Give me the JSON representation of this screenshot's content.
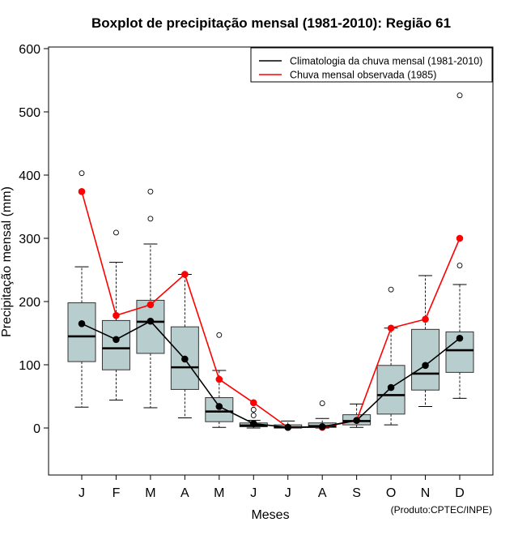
{
  "chart_data": {
    "type": "boxplot",
    "title": "Boxplot de precipitação mensal (1981-2010): Região 61",
    "xlabel": "Meses",
    "ylabel": "Precipitação mensal (mm)",
    "ylim": [
      -75,
      600
    ],
    "yticks": [
      0,
      100,
      200,
      300,
      400,
      500,
      600
    ],
    "categories": [
      "J",
      "F",
      "M",
      "A",
      "M",
      "J",
      "J",
      "A",
      "S",
      "O",
      "N",
      "D"
    ],
    "boxes": [
      {
        "month": "J",
        "whisker_low": 33,
        "q1": 105,
        "median": 145,
        "q3": 198,
        "whisker_high": 255,
        "outliers": [
          403
        ]
      },
      {
        "month": "F",
        "whisker_low": 44,
        "q1": 92,
        "median": 126,
        "q3": 170,
        "whisker_high": 262,
        "outliers": [
          309
        ]
      },
      {
        "month": "M",
        "whisker_low": 32,
        "q1": 118,
        "median": 168,
        "q3": 202,
        "whisker_high": 291,
        "outliers": [
          331,
          374
        ]
      },
      {
        "month": "A",
        "whisker_low": 16,
        "q1": 61,
        "median": 96,
        "q3": 160,
        "whisker_high": 243,
        "outliers": []
      },
      {
        "month": "M",
        "whisker_low": 1,
        "q1": 10,
        "median": 26,
        "q3": 48,
        "whisker_high": 91,
        "outliers": [
          147
        ]
      },
      {
        "month": "J",
        "whisker_low": 0,
        "q1": 2,
        "median": 4,
        "q3": 8,
        "whisker_high": 12,
        "outliers": [
          20,
          29
        ]
      },
      {
        "month": "J",
        "whisker_low": 0,
        "q1": 0,
        "median": 1,
        "q3": 5,
        "whisker_high": 11,
        "outliers": []
      },
      {
        "month": "A",
        "whisker_low": 0,
        "q1": 1,
        "median": 3,
        "q3": 8,
        "whisker_high": 15,
        "outliers": [
          39
        ]
      },
      {
        "month": "S",
        "whisker_low": 1,
        "q1": 5,
        "median": 11,
        "q3": 21,
        "whisker_high": 38,
        "outliers": []
      },
      {
        "month": "O",
        "whisker_low": 5,
        "q1": 22,
        "median": 52,
        "q3": 99,
        "whisker_high": 158,
        "outliers": [
          219
        ]
      },
      {
        "month": "N",
        "whisker_low": 34,
        "q1": 60,
        "median": 86,
        "q3": 156,
        "whisker_high": 241,
        "outliers": []
      },
      {
        "month": "D",
        "whisker_low": 47,
        "q1": 88,
        "median": 123,
        "q3": 152,
        "whisker_high": 227,
        "outliers": [
          257,
          526
        ]
      }
    ],
    "series": [
      {
        "name": "Climatologia da chuva mensal (1981-2010)",
        "color": "#000000",
        "values": [
          165,
          140,
          169,
          109,
          34,
          7,
          1,
          2,
          12,
          64,
          99,
          142
        ]
      },
      {
        "name": "Chuva mensal observada (1985)",
        "color": "#ff0000",
        "values": [
          374,
          178,
          195,
          243,
          77,
          40,
          1,
          1,
          12,
          158,
          172,
          300
        ]
      }
    ],
    "legend_position": "top-right",
    "box_fill": "#b8cece"
  },
  "credit": "(Produto:CPTEC/INPE)"
}
